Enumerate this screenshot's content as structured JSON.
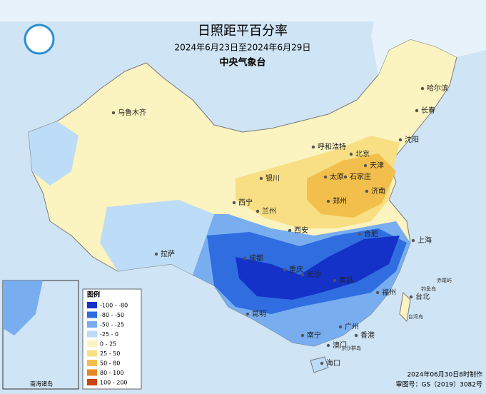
{
  "header": {
    "title": "日照距平百分率",
    "period": "2024年6月23日至2024年6月29日",
    "agency": "中央气象台"
  },
  "legend": {
    "title": "图例",
    "items": [
      {
        "label": "-100 - -80",
        "color": "#1432c8"
      },
      {
        "label": "-80 - -50",
        "color": "#2f6de0"
      },
      {
        "label": "-50 - -25",
        "color": "#78aef0"
      },
      {
        "label": "-25 - 0",
        "color": "#bcdcf7"
      },
      {
        "label": "0 - 25",
        "color": "#fbf3c0"
      },
      {
        "label": "25 - 50",
        "color": "#f8df84"
      },
      {
        "label": "50 - 80",
        "color": "#f3bf4c"
      },
      {
        "label": "80 - 100",
        "color": "#e58a22"
      },
      {
        "label": "100 - 200",
        "color": "#c8460f"
      }
    ]
  },
  "cities": [
    "乌鲁木齐",
    "呼和浩特",
    "哈尔滨",
    "长春",
    "沈阳",
    "北京",
    "天津",
    "银川",
    "太原",
    "石家庄",
    "济南",
    "西宁",
    "兰州",
    "郑州",
    "西安",
    "合肥",
    "上海",
    "拉萨",
    "成都",
    "重庆",
    "长沙",
    "南昌",
    "福州",
    "台北",
    "昆明",
    "南宁",
    "广州",
    "香港",
    "澳门",
    "海口"
  ],
  "islands": [
    "赤尾屿",
    "钓鱼岛",
    "台湾岛",
    "东沙群岛"
  ],
  "inset": {
    "label": "南海诸岛"
  },
  "footer": {
    "made": "2024年06月30日8时制作",
    "approval": "审图号：GS（2019）3082号"
  }
}
